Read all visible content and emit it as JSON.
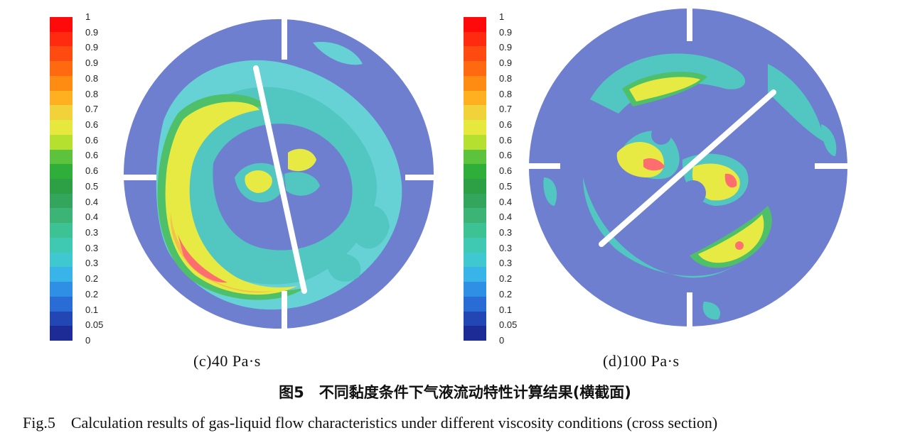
{
  "colorbar": {
    "labels": [
      "1",
      "0.9",
      "0.9",
      "0.9",
      "0.8",
      "0.8",
      "0.7",
      "0.6",
      "0.6",
      "0.6",
      "0.6",
      "0.5",
      "0.4",
      "0.4",
      "0.3",
      "0.3",
      "0.3",
      "0.2",
      "0.2",
      "0.1",
      "0.05",
      "0"
    ],
    "colors": [
      "#ff0a0a",
      "#ff2a10",
      "#ff4a10",
      "#ff6a10",
      "#ff8c12",
      "#ffb020",
      "#f2d23a",
      "#e6e83e",
      "#b6e030",
      "#5ec33c",
      "#2fae3a",
      "#2da045",
      "#33a55c",
      "#3cb476",
      "#3cc293",
      "#40c9b2",
      "#40c8d0",
      "#38b4e8",
      "#2f8fe4",
      "#2a6cd6",
      "#2246b4",
      "#1c2b96"
    ]
  },
  "panels": [
    {
      "id": "c",
      "caption": "(c)40 Pa·s"
    },
    {
      "id": "d",
      "caption": "(d)100 Pa·s"
    }
  ],
  "figure": {
    "caption_cn": "图5　不同黏度条件下气液流动特性计算结果(横截面)",
    "caption_en": "Fig.5　Calculation results of gas-liquid flow characteristics under different viscosity conditions (cross section)"
  }
}
